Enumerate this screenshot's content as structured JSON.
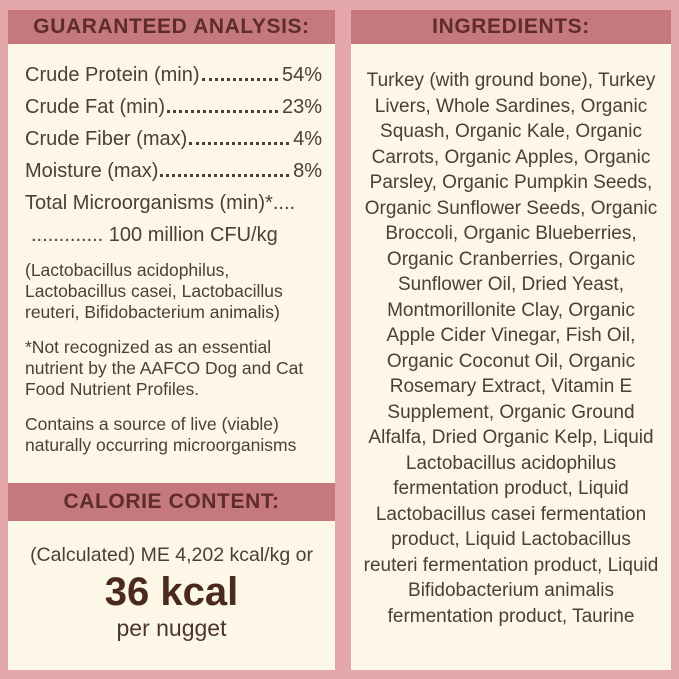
{
  "colors": {
    "outer_background_pink": "#e4a8ab",
    "header_bar_rose": "#c5797d",
    "header_text_maroon": "#5e2c2a",
    "panel_cream": "#fcf7e6",
    "body_text_brown": "#4c3e38",
    "calorie_value_brown": "#4b2a1e"
  },
  "guaranteed_analysis": {
    "title": "GUARANTEED ANALYSIS:",
    "rows": [
      {
        "label": "Crude Protein (min)",
        "value": "54%"
      },
      {
        "label": "Crude Fat (min)",
        "value": "23%"
      },
      {
        "label": "Crude Fiber (max)",
        "value": "4%"
      },
      {
        "label": "Moisture (max)",
        "value": "8%"
      }
    ],
    "microorganisms_line1": "Total Microorganisms (min)*....",
    "microorganisms_line2": "............. 100 million CFU/kg",
    "notes": [
      "(Lactobacillus acidophilus, Lactobacillus casei, Lactobacillus reuteri, Bifidobacterium animalis)",
      "*Not recognized as an essential nutrient by the AAFCO Dog and Cat Food Nutrient Profiles.",
      "Contains a source of live (viable) naturally occurring microorganisms"
    ]
  },
  "calorie_content": {
    "title": "CALORIE CONTENT:",
    "line1": "(Calculated) ME 4,202 kcal/kg or",
    "value": "36 kcal",
    "unit": "per nugget"
  },
  "ingredients": {
    "title": "INGREDIENTS:",
    "text": "Turkey (with ground bone), Turkey Livers, Whole Sardines, Organic Squash, Organic Kale, Organic Carrots, Organic Apples, Organic Parsley, Organic Pumpkin Seeds, Organic Sunflower Seeds, Organic Broccoli, Organic Blueberries, Organic Cranberries, Organic Sunflower Oil, Dried Yeast, Montmorillonite Clay, Organic Apple Cider Vinegar, Fish Oil, Organic Coconut Oil, Organic Rosemary Extract, Vitamin E Supplement, Organic Ground Alfalfa, Dried Organic Kelp, Liquid Lactobacillus acidophilus fermentation product, Liquid Lactobacillus casei fermentation product, Liquid Lactobacillus reuteri fermentation product, Liquid Bifidobacterium animalis fermentation product, Taurine"
  }
}
